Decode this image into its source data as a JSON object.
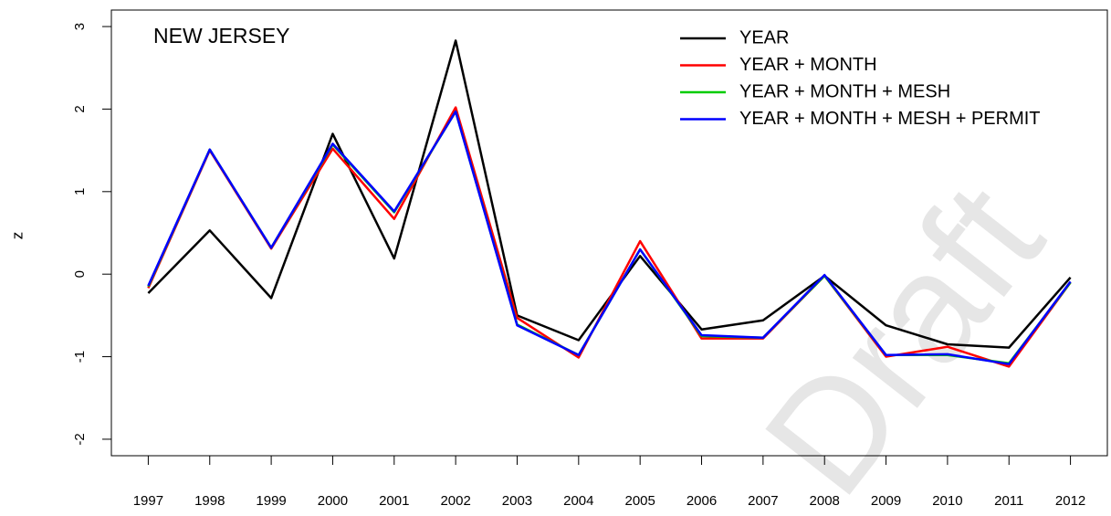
{
  "chart_data": {
    "type": "line",
    "annotation": "NEW JERSEY",
    "y_label": "z",
    "watermark": "Draft",
    "x": [
      1997,
      1998,
      1999,
      2000,
      2001,
      2002,
      2003,
      2004,
      2005,
      2006,
      2007,
      2008,
      2009,
      2010,
      2011,
      2012
    ],
    "series": [
      {
        "name": "YEAR",
        "color": "#000000",
        "values": [
          -0.23,
          0.53,
          -0.29,
          1.7,
          0.19,
          2.83,
          -0.5,
          -0.8,
          0.22,
          -0.67,
          -0.56,
          -0.02,
          -0.62,
          -0.85,
          -0.89,
          -0.04
        ]
      },
      {
        "name": "YEAR + MONTH",
        "color": "#ff0000",
        "values": [
          -0.17,
          1.5,
          0.31,
          1.52,
          0.67,
          2.02,
          -0.53,
          -1.01,
          0.4,
          -0.78,
          -0.78,
          -0.02,
          -1.0,
          -0.88,
          -1.12,
          -0.1
        ]
      },
      {
        "name": "YEAR + MONTH + MESH",
        "color": "#00cc00",
        "values": [
          -0.15,
          1.51,
          0.32,
          1.57,
          0.75,
          1.97,
          -0.61,
          -0.98,
          0.3,
          -0.75,
          -0.77,
          -0.02,
          -0.98,
          -0.98,
          -1.08,
          -0.1
        ]
      },
      {
        "name": "YEAR + MONTH + MESH + PERMIT",
        "color": "#0000ff",
        "values": [
          -0.14,
          1.51,
          0.32,
          1.58,
          0.76,
          1.97,
          -0.62,
          -0.98,
          0.3,
          -0.74,
          -0.77,
          -0.01,
          -0.98,
          -0.97,
          -1.09,
          -0.09
        ]
      }
    ],
    "xlim": [
      1996.4,
      2012.6
    ],
    "xticks": [
      1997,
      1998,
      1999,
      2000,
      2001,
      2002,
      2003,
      2004,
      2005,
      2006,
      2007,
      2008,
      2009,
      2010,
      2011,
      2012
    ],
    "ylim": [
      -2.2,
      3.2
    ],
    "yticks": [
      -2,
      -1,
      0,
      1,
      2,
      3
    ],
    "legend": "top-right"
  }
}
